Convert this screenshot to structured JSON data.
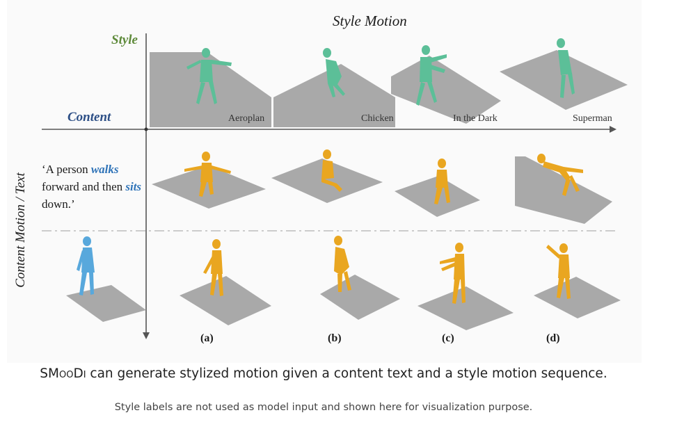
{
  "figure": {
    "header_title": "Style Motion",
    "axis_style_label": "Style",
    "axis_content_label": "Content",
    "axis_vertical_label": "Content Motion / Text",
    "prompt_parts": [
      "‘A person ",
      "walks",
      " forward and then ",
      "sits",
      " down.’"
    ],
    "style_labels": [
      "Aeroplan",
      "Chicken",
      "In the Dark",
      "Superman"
    ],
    "panel_letters": [
      "(a)",
      "(b)",
      "(c)",
      "(d)"
    ],
    "colors": {
      "style_figure": "#5cbf98",
      "output_figure": "#e9a620",
      "content_figure": "#58a8dc",
      "floor": "#a9a9a9",
      "style_label": "#5e8a3a",
      "content_label": "#2d4f86",
      "highlight_word": "#2e73b8"
    }
  },
  "caption": {
    "name": "SMooDi",
    "text": " can generate stylized motion given a content text and a style motion sequence."
  },
  "subcaption": "Style labels are not used as model input and shown here for visualization purpose."
}
